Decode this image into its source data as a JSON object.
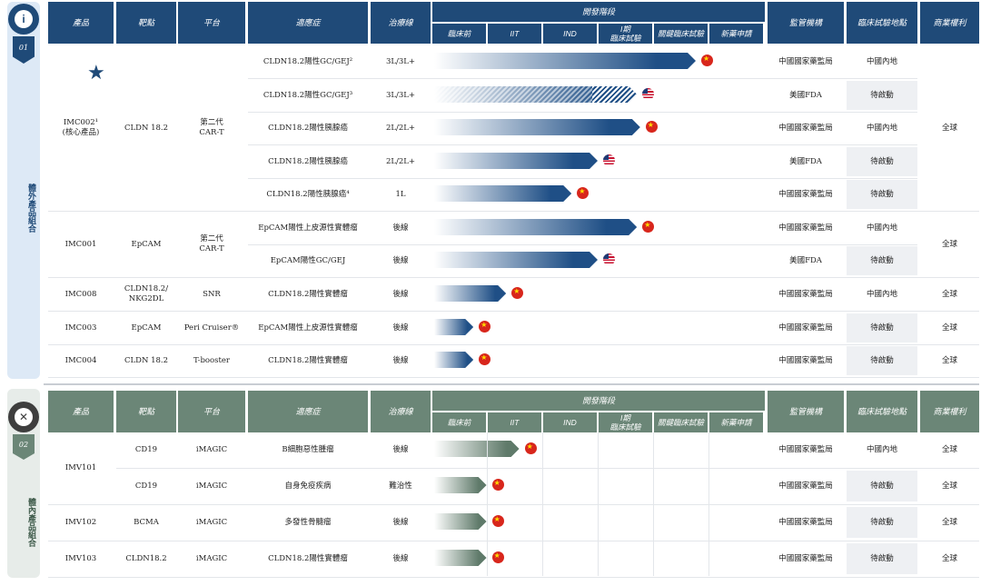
{
  "section1": {
    "number": "01",
    "side_label": "體外產品組合",
    "headers": [
      "產品",
      "靶點",
      "平台",
      "適應症",
      "治療線",
      "開發階段",
      "監管機構",
      "臨床試驗地點",
      "商業權利"
    ],
    "stages": [
      "臨床前",
      "IIT",
      "IND",
      "I期\n臨床試驗",
      "關鍵臨床試驗",
      "新藥申請"
    ],
    "groups": [
      {
        "product": "IMC002¹\n(核心產品)",
        "target": "CLDN 18.2",
        "platform": "第二代\nCAR-T",
        "rights": "全球"
      },
      {
        "product": "IMC001",
        "target": "EpCAM",
        "platform": "第二代\nCAR-T",
        "rights": "全球"
      },
      {
        "product": "IMC008",
        "target": "CLDN18.2/\nNKG2DL",
        "platform": "SNR",
        "rights": "全球"
      },
      {
        "product": "IMC003",
        "target": "EpCAM",
        "platform": "Peri Cruiser®",
        "rights": "全球"
      },
      {
        "product": "IMC004",
        "target": "CLDN 18.2",
        "platform": "T-booster",
        "rights": "全球"
      }
    ],
    "rows": [
      {
        "indication": "CLDN18.2陽性GC/GEJ²",
        "line": "3L/3L+",
        "progress": 0.8,
        "flag": "cn",
        "regulator": "中國國家藥監局",
        "site": "中國內地"
      },
      {
        "indication": "CLDN18.2陽性GC/GEJ³",
        "line": "3L/3L+",
        "progress": 0.62,
        "flag": "us",
        "regulator": "美國FDA",
        "site": "待啟動"
      },
      {
        "indication": "CLDN18.2陽性胰腺癌",
        "line": "2L/2L+",
        "progress": 0.63,
        "flag": "cn",
        "regulator": "中國國家藥監局",
        "site": "中國內地"
      },
      {
        "indication": "CLDN18.2陽性胰腺癌",
        "line": "2L/2L+",
        "progress": 0.5,
        "flag": "us",
        "regulator": "美國FDA",
        "site": "待啟動"
      },
      {
        "indication": "CLDN18.2陽性胰腺癌⁴",
        "line": "1L",
        "progress": 0.42,
        "flag": "cn",
        "regulator": "中國國家藥監局",
        "site": "待啟動"
      },
      {
        "indication": "EpCAM陽性上皮源性實體瘤",
        "line": "後線",
        "progress": 0.62,
        "flag": "cn",
        "regulator": "中國國家藥監局",
        "site": "中國內地"
      },
      {
        "indication": "EpCAM陽性GC/GEJ",
        "line": "後線",
        "progress": 0.5,
        "flag": "us",
        "regulator": "美國FDA",
        "site": "待啟動"
      },
      {
        "indication": "CLDN18.2陽性實體瘤",
        "line": "後線",
        "progress": 0.22,
        "flag": "cn",
        "regulator": "中國國家藥監局",
        "site": "中國內地"
      },
      {
        "indication": "EpCAM陽性上皮源性實體瘤",
        "line": "後線",
        "progress": 0.12,
        "flag": "cn",
        "regulator": "中國國家藥監局",
        "site": "待啟動"
      },
      {
        "indication": "CLDN18.2陽性實體瘤",
        "line": "後線",
        "progress": 0.12,
        "flag": "cn",
        "regulator": "中國國家藥監局",
        "site": "待啟動"
      }
    ]
  },
  "section2": {
    "number": "02",
    "side_label": "體內產品組合",
    "headers": [
      "產品",
      "靶點",
      "平台",
      "適應症",
      "治療線",
      "開發階段",
      "監管機構",
      "臨床試驗地點",
      "商業權利"
    ],
    "stages": [
      "臨床前",
      "IIT",
      "IND",
      "I期\n臨床試驗",
      "關鍵臨床試驗",
      "新藥申請"
    ],
    "rows": [
      {
        "product": "IMV101",
        "target": "CD19",
        "platform": "iMAGIC",
        "indication": "B細胞惡性腫瘤",
        "line": "後線",
        "progress": 0.26,
        "flag": "cn",
        "regulator": "中國國家藥監局",
        "site": "中國內地",
        "rights": "全球"
      },
      {
        "product": "",
        "target": "CD19",
        "platform": "iMAGIC",
        "indication": "自身免疫疾病",
        "line": "難治性",
        "progress": 0.16,
        "flag": "cn",
        "regulator": "中國國家藥監局",
        "site": "待啟動",
        "rights": "全球"
      },
      {
        "product": "IMV102",
        "target": "BCMA",
        "platform": "iMAGIC",
        "indication": "多發性骨髓瘤",
        "line": "後線",
        "progress": 0.16,
        "flag": "cn",
        "regulator": "中國國家藥監局",
        "site": "待啟動",
        "rights": "全球"
      },
      {
        "product": "IMV103",
        "target": "CLDN18.2",
        "platform": "iMAGIC",
        "indication": "CLDN18.2陽性實體瘤",
        "line": "後線",
        "progress": 0.16,
        "flag": "cn",
        "regulator": "中國國家藥監局",
        "site": "待啟動",
        "rights": "全球"
      }
    ]
  },
  "colors": {
    "blue_header": "#1f4a78",
    "green_header": "#6b8677",
    "blue_bar": "#1f4f86",
    "green_bar": "#5f7a6a",
    "flag_cn": "#d8261c"
  }
}
